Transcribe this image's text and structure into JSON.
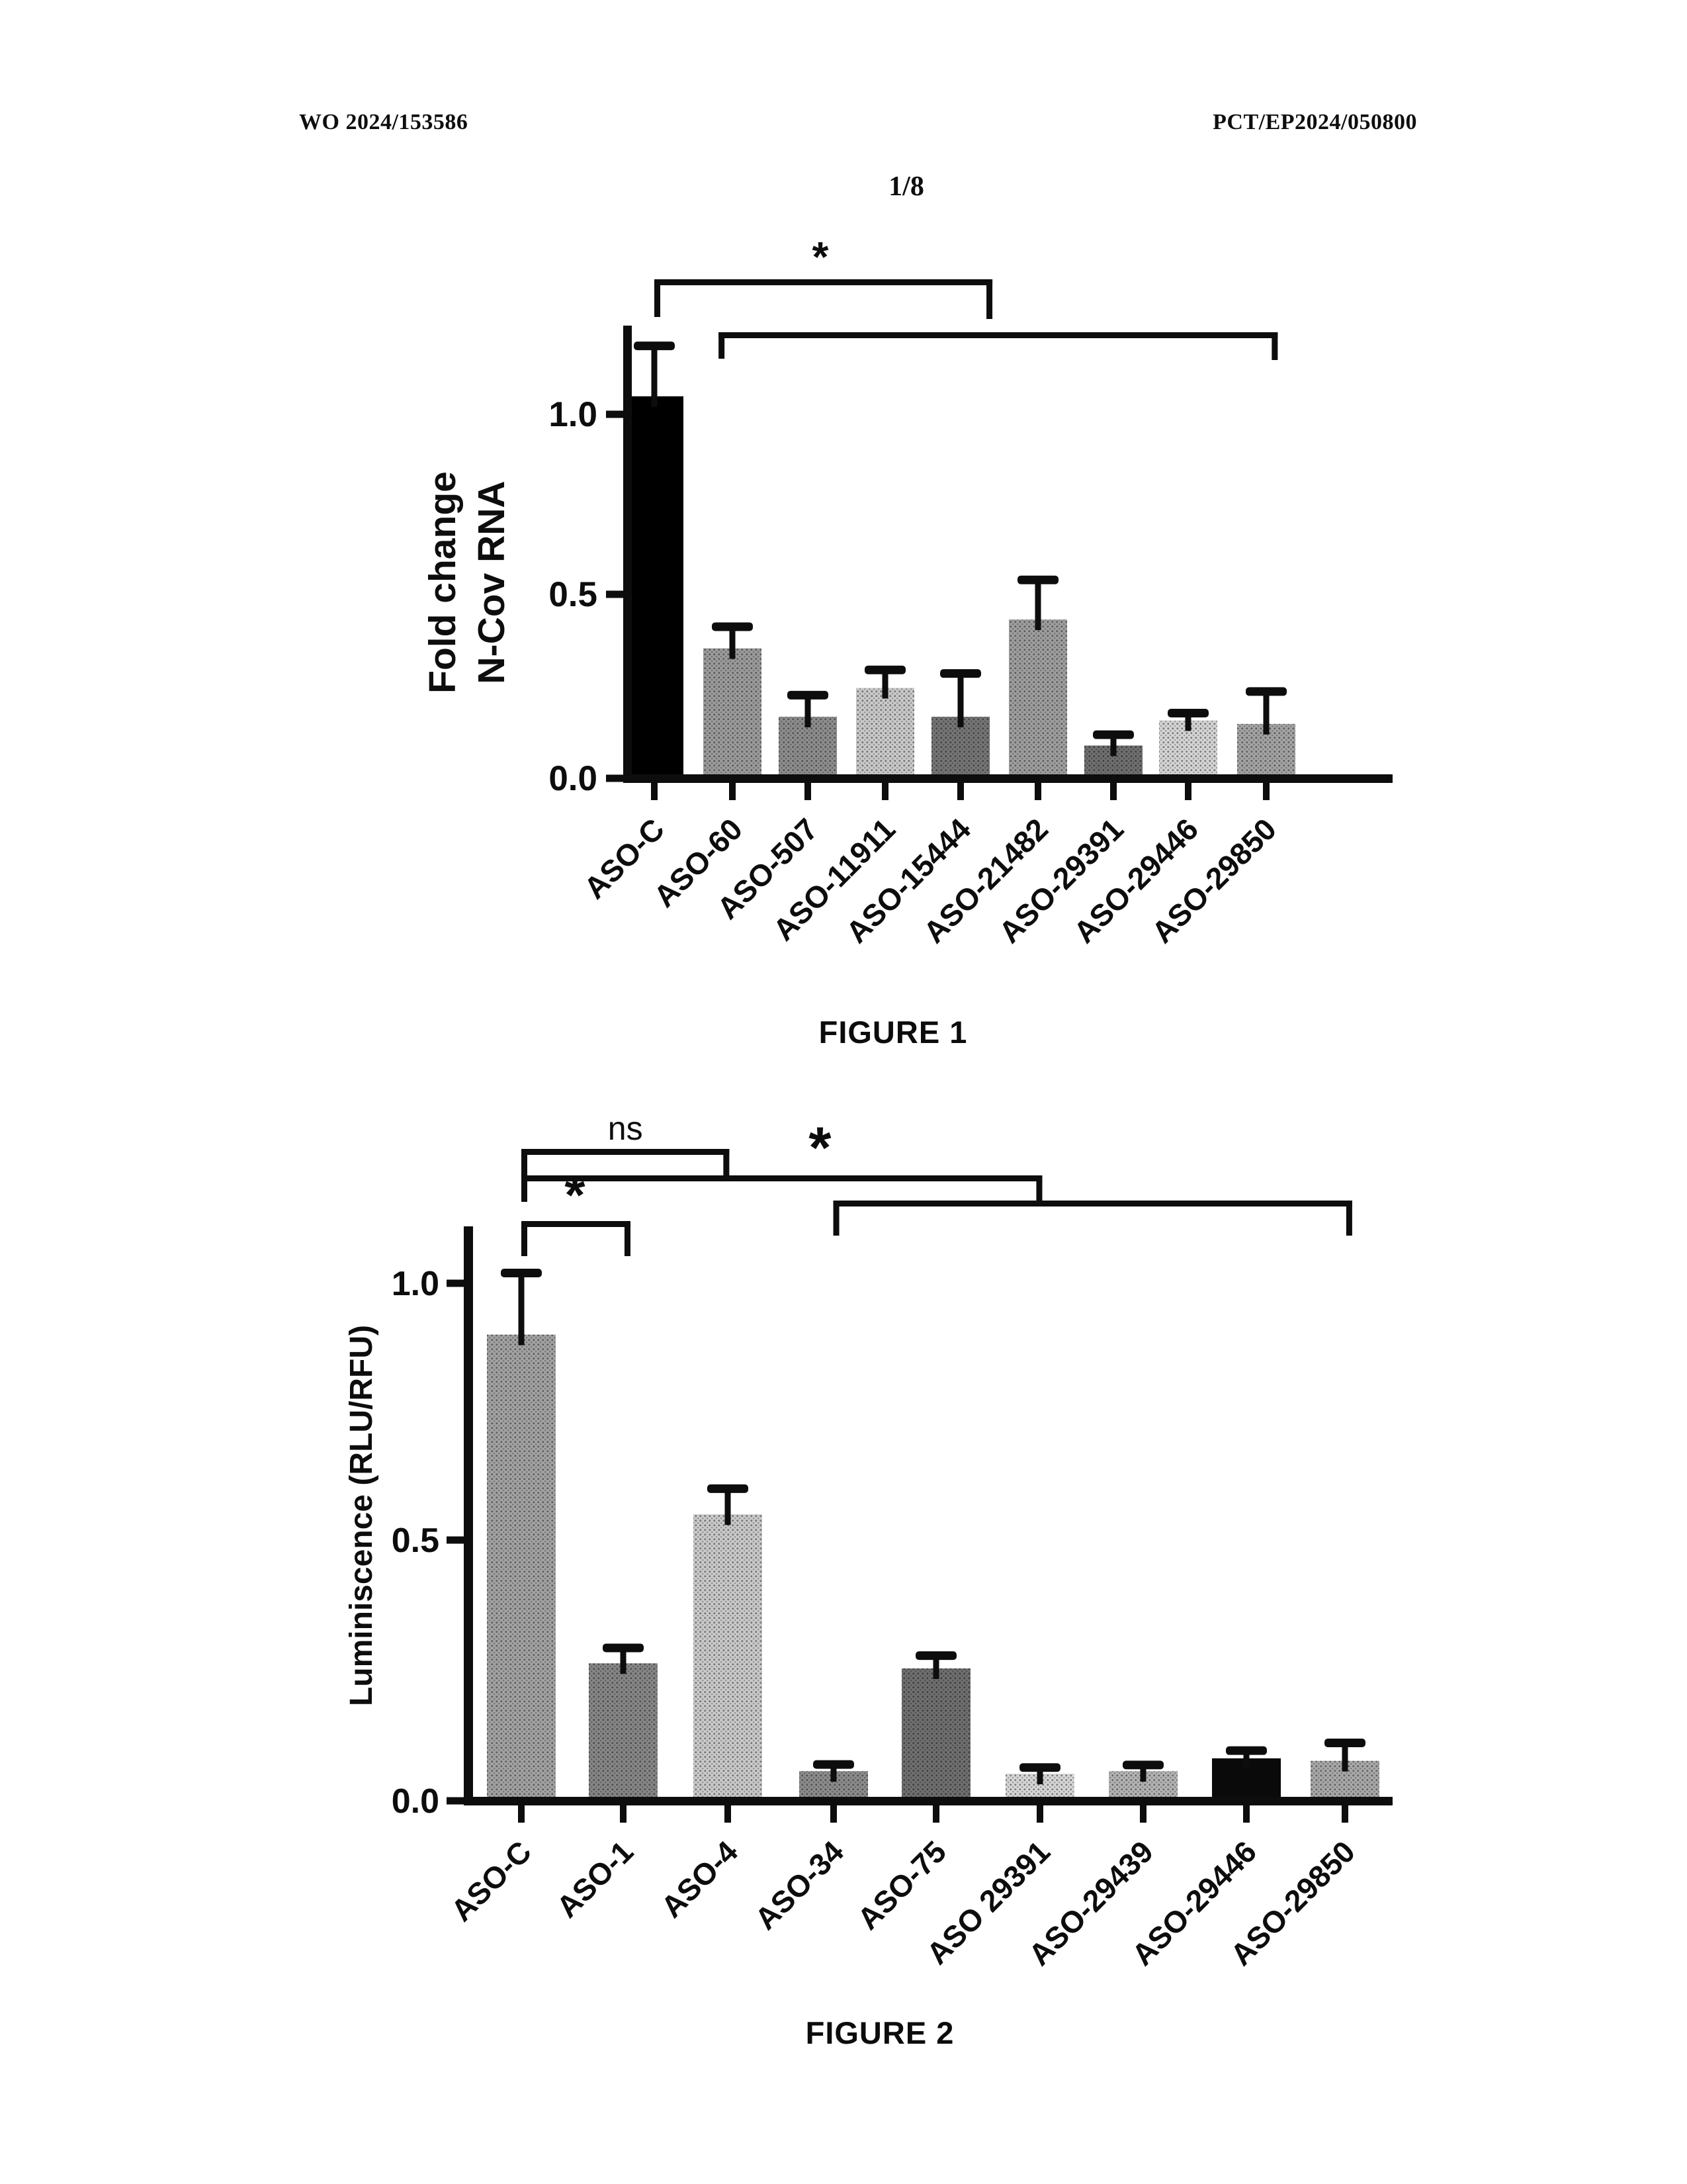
{
  "page": {
    "header_left": "WO 2024/153586",
    "header_right": "PCT/EP2024/050800",
    "page_number": "1/8"
  },
  "figure1": {
    "caption": "FIGURE 1"
  },
  "figure2": {
    "caption": "FIGURE 2"
  },
  "chart_data": [
    {
      "id": "figure1",
      "type": "bar",
      "title": "",
      "xlabel": "",
      "ylabel": "Fold change N-Cov RNA",
      "ylabel_lines": [
        "Fold change",
        "N-Cov RNA"
      ],
      "ylim": [
        0,
        1.25
      ],
      "grid": false,
      "legend": null,
      "yticks": [
        {
          "v": 0,
          "label": "0.0"
        },
        {
          "v": 0.5,
          "label": "0.5"
        },
        {
          "v": 1,
          "label": "1.0"
        }
      ],
      "categories": [
        "ASO-C",
        "ASO-60",
        "ASO-507",
        "ASO-11911",
        "ASO-15444",
        "ASO-21482",
        "ASO-29391",
        "ASO-29446",
        "ASO-29850"
      ],
      "values": [
        1.05,
        0.35,
        0.16,
        0.24,
        0.16,
        0.43,
        0.08,
        0.15,
        0.14
      ],
      "errors_plus": [
        0.14,
        0.06,
        0.06,
        0.05,
        0.12,
        0.11,
        0.03,
        0.02,
        0.09
      ],
      "bar_styles": [
        {
          "color": "#000000",
          "stipple": false
        },
        {
          "color": "#9b9b9b",
          "stipple": true
        },
        {
          "color": "#8d8d8d",
          "stipple": true
        },
        {
          "color": "#c9c9c9",
          "stipple": true
        },
        {
          "color": "#757575",
          "stipple": true
        },
        {
          "color": "#9e9e9e",
          "stipple": true
        },
        {
          "color": "#6f6f6f",
          "stipple": true
        },
        {
          "color": "#d4d4d4",
          "stipple": true
        },
        {
          "color": "#a3a3a3",
          "stipple": true
        }
      ],
      "significance_brackets": [
        {
          "label": "*",
          "from": "ASO-C",
          "to": "ASO-21482",
          "x1": 0,
          "x2": 4.42
        },
        {
          "label": "",
          "from": "ASO-60",
          "to": "ASO-29850",
          "x1": 0.84,
          "x2": 8.15
        }
      ]
    },
    {
      "id": "figure2",
      "type": "bar",
      "title": "",
      "xlabel": "",
      "ylabel": "Luminiscence (RLU/RFU)",
      "ylabel_lines": [
        "Luminiscence (RLU/RFU)"
      ],
      "ylim": [
        0,
        1.11
      ],
      "grid": false,
      "legend": null,
      "yticks": [
        {
          "v": 0,
          "label": "0.0"
        },
        {
          "v": 0.5,
          "label": "0.5"
        },
        {
          "v": 1,
          "label": "1.0"
        }
      ],
      "categories": [
        "ASO-C",
        "ASO-1",
        "ASO-4",
        "ASO-34",
        "ASO-75",
        "ASO 29391",
        "ASO-29439",
        "ASO-29446",
        "ASO-29850"
      ],
      "values": [
        0.9,
        0.26,
        0.55,
        0.05,
        0.25,
        0.045,
        0.05,
        0.075,
        0.07
      ],
      "errors_plus": [
        0.12,
        0.03,
        0.05,
        0.013,
        0.025,
        0.012,
        0.012,
        0.015,
        0.035
      ],
      "bar_styles": [
        {
          "color": "#a2a2a2",
          "stipple": true
        },
        {
          "color": "#868686",
          "stipple": true
        },
        {
          "color": "#c9c9c9",
          "stipple": true
        },
        {
          "color": "#8c8c8c",
          "stipple": true
        },
        {
          "color": "#6f6f6f",
          "stipple": true
        },
        {
          "color": "#d6d6d6",
          "stipple": true
        },
        {
          "color": "#b3b3b3",
          "stipple": true
        },
        {
          "color": "#0a0a0a",
          "stipple": false
        },
        {
          "color": "#a8a8a8",
          "stipple": true
        }
      ],
      "significance_brackets": [
        {
          "label": "ns",
          "from": "ASO-C",
          "to": "ASO-4",
          "x1": 0,
          "x2": 2.02
        },
        {
          "label": "*",
          "from": "ASO-C",
          "to": "ASO 29391",
          "x1": 0,
          "x2": 5.06
        },
        {
          "label": "",
          "from": "ASO-34",
          "to": "ASO-29850",
          "x1": 3.03,
          "x2": 8.07
        },
        {
          "label": "*",
          "from": "ASO-C",
          "to": "ASO-1",
          "x1": 0,
          "x2": 1.06
        }
      ]
    }
  ]
}
